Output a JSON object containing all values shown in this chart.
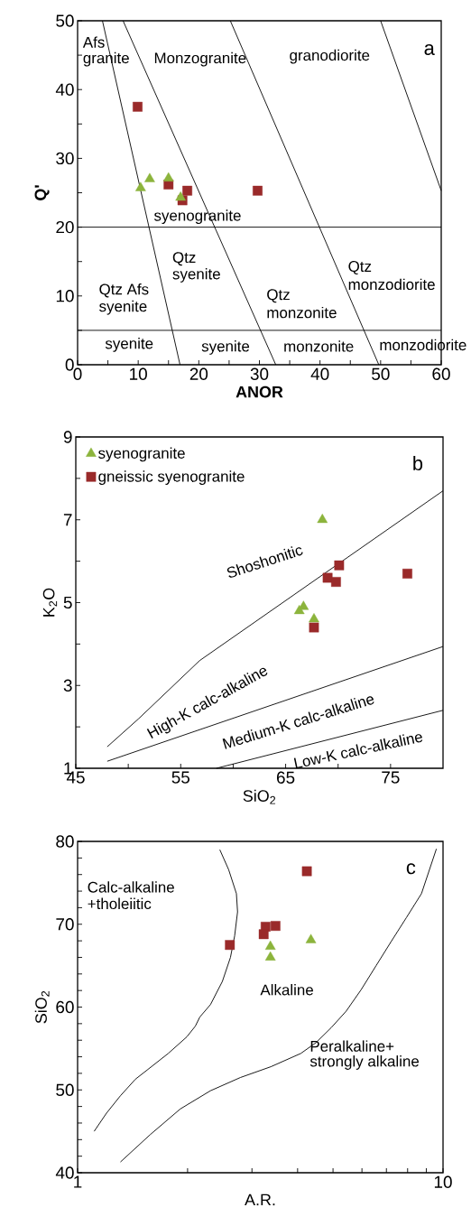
{
  "chart_data": [
    {
      "type": "scatter",
      "xlabel": "ANOR",
      "ylabel": "Q'",
      "xlim": [
        0,
        60
      ],
      "ylim": [
        0,
        50
      ],
      "xticks": [
        0,
        {
          "value": 5,
          "label": null
        },
        10,
        {
          "value": 15,
          "label": null
        },
        20,
        {
          "value": 25,
          "label": null
        },
        30,
        {
          "value": 35,
          "label": null
        },
        40,
        {
          "value": 45,
          "label": null
        },
        50,
        {
          "value": 55,
          "label": null
        },
        60
      ],
      "yticks": [
        0,
        {
          "value": 5,
          "label": null
        },
        10,
        {
          "value": 15,
          "label": null
        },
        20,
        {
          "value": 25,
          "label": null
        },
        30,
        {
          "value": 35,
          "label": null
        },
        40,
        {
          "value": 45,
          "label": null
        },
        50
      ],
      "series": [
        {
          "color": "#8cb43c",
          "marker": "triangle",
          "x": [
            10.4,
            11.9,
            15.0,
            17.0
          ],
          "values": [
            25.7,
            27.0,
            27.1,
            24.3
          ]
        },
        {
          "color": "#9a2a2a",
          "marker": "square",
          "x": [
            9.9,
            15.0,
            18.1,
            17.3,
            29.7
          ],
          "values": [
            37.5,
            26.2,
            25.3,
            23.9,
            25.3
          ]
        },
        {
          "type": "line",
          "color": "#000000",
          "x": [
            4.1,
            16.9
          ],
          "values": [
            50,
            0
          ]
        },
        {
          "type": "line",
          "color": "#000000",
          "x": [
            7.5,
            32.7
          ],
          "values": [
            50,
            0
          ]
        },
        {
          "type": "line",
          "color": "#000000",
          "x": [
            25.2,
            49.7
          ],
          "values": [
            50,
            0
          ]
        },
        {
          "type": "line",
          "color": "#000000",
          "x": [
            50.0,
            60
          ],
          "values": [
            50,
            25.3
          ]
        },
        {
          "type": "line",
          "color": "#000000",
          "x": [
            0,
            60
          ],
          "values": [
            20,
            20
          ]
        },
        {
          "type": "line",
          "color": "#000000",
          "x": [
            0,
            60
          ],
          "values": [
            5,
            5
          ]
        }
      ],
      "annotations": [
        "Afs",
        "granite",
        "Monzogranite",
        "granodiorite",
        "a",
        "syenogranite",
        "Qtz",
        "syenite",
        "Qtz Afs",
        "syenite",
        "Qtz",
        "monzonite",
        "Qtz",
        "monzodiorite",
        "syenite",
        "syenite",
        "monzonite",
        "monzodiorite"
      ]
    },
    {
      "type": "scatter",
      "xlabel": "SiO$_{2}$",
      "ylabel": "K$_{2}$O",
      "xlim": [
        45,
        80
      ],
      "ylim": [
        1,
        9
      ],
      "legend": "top left",
      "xticks": [
        45,
        {
          "value": 50,
          "label": null
        },
        55,
        {
          "value": 60,
          "label": null
        },
        65,
        {
          "value": 70,
          "label": null
        },
        75
      ],
      "yticks": [
        1,
        {
          "value": 2,
          "label": null
        },
        3,
        {
          "value": 4,
          "label": null
        },
        5,
        {
          "value": 6,
          "label": null
        },
        7,
        {
          "value": 8,
          "label": null
        },
        9
      ],
      "series": [
        {
          "name": "syenogranite",
          "color": "#8cb43c",
          "marker": "triangle",
          "x": [
            68.5,
            66.7,
            66.3,
            67.7
          ],
          "values": [
            7.0,
            4.9,
            4.8,
            4.6
          ]
        },
        {
          "name": "gneissic syenogranite",
          "color": "#9a2a2a",
          "marker": "square",
          "x": [
            70.1,
            69.0,
            69.8,
            67.7,
            76.6
          ],
          "values": [
            5.9,
            5.6,
            5.5,
            4.4,
            5.7
          ]
        },
        {
          "type": "line",
          "color": "#000000",
          "x": [
            48.0,
            51.0,
            56.8,
            80
          ],
          "values": [
            1.52,
            2.2,
            3.6,
            7.7
          ]
        },
        {
          "type": "line",
          "color": "#000000",
          "x": [
            48.0,
            80
          ],
          "values": [
            1.17,
            3.94
          ]
        },
        {
          "type": "line",
          "color": "#000000",
          "x": [
            58.4,
            80
          ],
          "values": [
            1.0,
            2.4
          ]
        }
      ],
      "annotations": [
        "Shoshonitic",
        "High-K calc-alkaline",
        "Medium-K calc-alkaline",
        "Low-K calc-alkaline",
        "b"
      ]
    },
    {
      "type": "scatter",
      "xlabel": "A.R.",
      "ylabel": "SiO$_{2}$",
      "log": "x",
      "xlim": [
        1,
        10
      ],
      "ylim": [
        40,
        80
      ],
      "xticks": [
        1,
        {
          "value": 2,
          "label": null
        },
        {
          "value": 3,
          "label": null
        },
        {
          "value": 4,
          "label": null
        },
        {
          "value": 5,
          "label": null
        },
        {
          "value": 6,
          "label": null
        },
        {
          "value": 7,
          "label": null
        },
        {
          "value": 8,
          "label": null
        },
        {
          "value": 9,
          "label": null
        },
        10
      ],
      "yticks": [
        40,
        {
          "value": 42,
          "label": null
        },
        {
          "value": 44,
          "label": null
        },
        {
          "value": 46,
          "label": null
        },
        {
          "value": 48,
          "label": null
        },
        50,
        {
          "value": 52,
          "label": null
        },
        {
          "value": 54,
          "label": null
        },
        {
          "value": 56,
          "label": null
        },
        {
          "value": 58,
          "label": null
        },
        60,
        {
          "value": 62,
          "label": null
        },
        {
          "value": 64,
          "label": null
        },
        {
          "value": 66,
          "label": null
        },
        {
          "value": 68,
          "label": null
        },
        70,
        {
          "value": 72,
          "label": null
        },
        {
          "value": 74,
          "label": null
        },
        {
          "value": 76,
          "label": null
        },
        {
          "value": 78,
          "label": null
        },
        80
      ],
      "series": [
        {
          "color": "#8cb43c",
          "marker": "triangle",
          "x": [
            4.35,
            3.37,
            3.37
          ],
          "values": [
            68.1,
            67.3,
            66.0
          ]
        },
        {
          "color": "#9a2a2a",
          "marker": "square",
          "x": [
            4.24,
            3.48,
            3.27,
            3.23,
            2.61
          ],
          "values": [
            76.4,
            69.8,
            69.7,
            68.8,
            67.5
          ]
        },
        {
          "type": "line",
          "color": "#000000",
          "x": [
            2.45,
            2.59,
            2.72,
            2.74,
            2.69,
            2.62,
            2.49,
            2.31,
            2.16,
            2.1,
            1.99,
            1.77,
            1.55,
            1.44,
            1.31,
            1.2,
            1.11
          ],
          "values": [
            79.0,
            76.6,
            73.7,
            71.5,
            68.6,
            66.0,
            63.1,
            60.3,
            58.8,
            57.7,
            56.4,
            54.4,
            52.4,
            51.3,
            49.3,
            47.2,
            45.0
          ]
        },
        {
          "type": "line",
          "color": "#000000",
          "x": [
            1.31,
            1.58,
            1.91,
            2.31,
            2.79,
            3.38,
            4.08,
            4.49,
            4.94,
            5.43,
            5.97,
            6.56,
            7.21,
            7.94,
            8.73,
            9.59
          ],
          "values": [
            41.3,
            44.6,
            47.7,
            49.9,
            51.5,
            52.8,
            54.4,
            55.7,
            57.5,
            59.5,
            62.1,
            65.0,
            67.9,
            70.8,
            73.7,
            79.1
          ]
        }
      ],
      "annotations": [
        "Calc-alkaline",
        "+tholeiitic",
        "Alkaline",
        "Peralkaline+",
        "strongly alkaline",
        "c"
      ]
    }
  ]
}
